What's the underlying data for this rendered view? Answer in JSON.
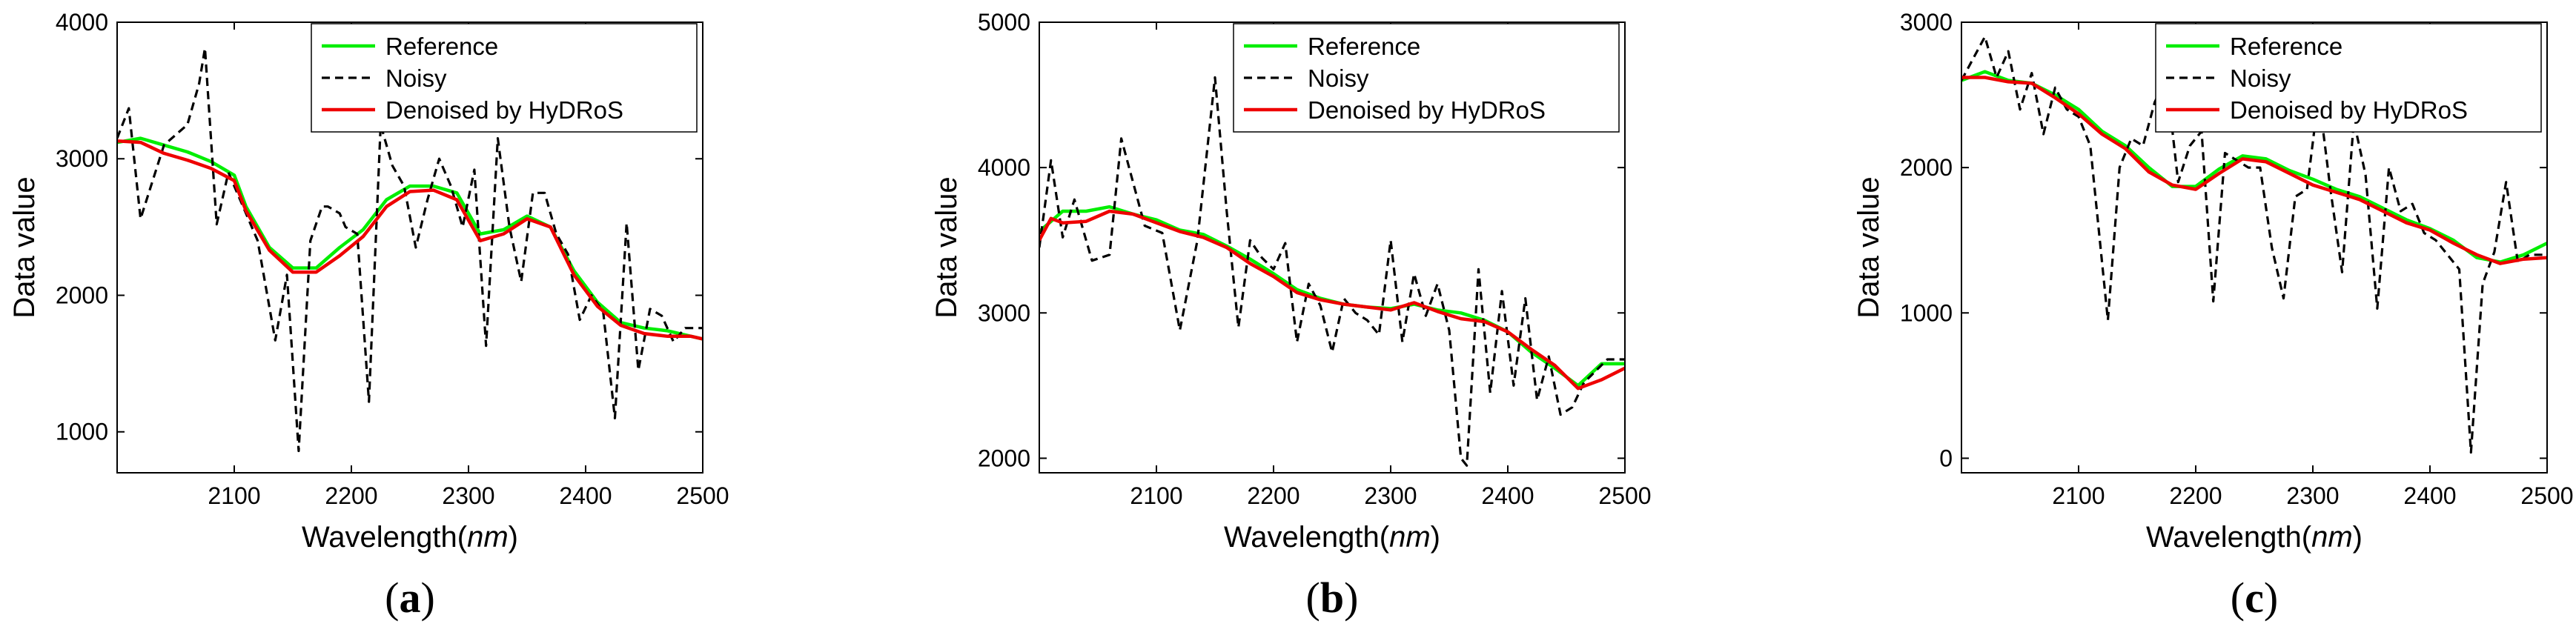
{
  "chart_data": [
    {
      "id": "a",
      "caption_letter": "a",
      "type": "line",
      "xlabel_main": "Wavelength",
      "xlabel_unit": "nm",
      "ylabel": "Data value",
      "xlim": [
        2000,
        2500
      ],
      "ylim": [
        700,
        4000
      ],
      "xticks": [
        2100,
        2200,
        2300,
        2400,
        2500
      ],
      "yticks": [
        1000,
        2000,
        3000,
        4000
      ],
      "legend_position": "top-right",
      "series": [
        {
          "name": "Reference",
          "color": "#00ee00",
          "dash": "solid",
          "x": [
            2000,
            2020,
            2040,
            2060,
            2080,
            2100,
            2110,
            2130,
            2150,
            2170,
            2190,
            2210,
            2230,
            2250,
            2270,
            2290,
            2310,
            2330,
            2350,
            2370,
            2390,
            2410,
            2430,
            2450,
            2470,
            2490,
            2500
          ],
          "y": [
            3120,
            3150,
            3100,
            3050,
            2980,
            2880,
            2650,
            2350,
            2200,
            2200,
            2350,
            2480,
            2700,
            2800,
            2800,
            2750,
            2450,
            2480,
            2580,
            2500,
            2180,
            1950,
            1800,
            1760,
            1740,
            1700,
            1680
          ]
        },
        {
          "name": "Noisy",
          "color": "#000000",
          "dash": "dashed",
          "x": [
            2000,
            2010,
            2020,
            2040,
            2060,
            2070,
            2075,
            2085,
            2095,
            2105,
            2120,
            2135,
            2145,
            2155,
            2165,
            2175,
            2180,
            2190,
            2195,
            2205,
            2215,
            2225,
            2235,
            2245,
            2255,
            2265,
            2275,
            2285,
            2295,
            2305,
            2315,
            2325,
            2335,
            2345,
            2355,
            2365,
            2375,
            2385,
            2395,
            2405,
            2415,
            2425,
            2435,
            2445,
            2455,
            2465,
            2475,
            2485,
            2500
          ],
          "y": [
            3150,
            3370,
            2560,
            3100,
            3250,
            3550,
            3810,
            2520,
            2900,
            2700,
            2400,
            1670,
            2150,
            860,
            2400,
            2650,
            2650,
            2600,
            2500,
            2450,
            1220,
            3250,
            2950,
            2800,
            2350,
            2700,
            3000,
            2800,
            2500,
            2920,
            1630,
            3150,
            2500,
            2100,
            2750,
            2750,
            2450,
            2300,
            1820,
            2000,
            1880,
            1100,
            2530,
            1450,
            1900,
            1850,
            1660,
            1760,
            1760
          ]
        },
        {
          "name": "Denoised by HyDRoS",
          "color": "#ee0000",
          "dash": "solid",
          "x": [
            2000,
            2020,
            2040,
            2060,
            2080,
            2100,
            2110,
            2130,
            2150,
            2170,
            2190,
            2210,
            2230,
            2250,
            2270,
            2290,
            2310,
            2330,
            2350,
            2370,
            2390,
            2410,
            2430,
            2450,
            2470,
            2490,
            2500
          ],
          "y": [
            3130,
            3120,
            3040,
            2990,
            2930,
            2840,
            2620,
            2330,
            2170,
            2170,
            2290,
            2430,
            2650,
            2760,
            2770,
            2700,
            2400,
            2450,
            2560,
            2500,
            2150,
            1920,
            1780,
            1720,
            1700,
            1700,
            1680
          ]
        }
      ]
    },
    {
      "id": "b",
      "caption_letter": "b",
      "type": "line",
      "xlabel_main": "Wavelength",
      "xlabel_unit": "nm",
      "ylabel": "Data value",
      "xlim": [
        2000,
        2500
      ],
      "ylim": [
        1900,
        5000
      ],
      "xticks": [
        2100,
        2200,
        2300,
        2400,
        2500
      ],
      "yticks": [
        2000,
        3000,
        4000,
        5000
      ],
      "legend_position": "top-right",
      "series": [
        {
          "name": "Reference",
          "color": "#00ee00",
          "dash": "solid",
          "x": [
            2000,
            2020,
            2040,
            2060,
            2080,
            2100,
            2120,
            2140,
            2160,
            2180,
            2200,
            2220,
            2240,
            2260,
            2280,
            2300,
            2320,
            2340,
            2360,
            2380,
            2400,
            2420,
            2440,
            2460,
            2480,
            2500
          ],
          "y": [
            3560,
            3700,
            3700,
            3730,
            3680,
            3640,
            3570,
            3540,
            3460,
            3370,
            3270,
            3160,
            3100,
            3060,
            3040,
            3030,
            3060,
            3020,
            3000,
            2950,
            2870,
            2730,
            2620,
            2500,
            2650,
            2650
          ]
        },
        {
          "name": "Noisy",
          "color": "#000000",
          "dash": "dashed",
          "x": [
            2000,
            2010,
            2020,
            2030,
            2045,
            2060,
            2070,
            2080,
            2090,
            2105,
            2120,
            2135,
            2150,
            2160,
            2170,
            2180,
            2190,
            2200,
            2210,
            2220,
            2230,
            2240,
            2250,
            2260,
            2270,
            2280,
            2290,
            2300,
            2310,
            2320,
            2330,
            2340,
            2350,
            2360,
            2365,
            2375,
            2385,
            2395,
            2405,
            2415,
            2425,
            2435,
            2445,
            2455,
            2465,
            2475,
            2485,
            2500
          ],
          "y": [
            3450,
            4050,
            3520,
            3780,
            3360,
            3400,
            4200,
            3900,
            3600,
            3550,
            2880,
            3500,
            4620,
            3700,
            2900,
            3500,
            3380,
            3300,
            3480,
            2800,
            3200,
            3050,
            2730,
            3100,
            3000,
            2950,
            2850,
            3500,
            2800,
            3270,
            2980,
            3200,
            2880,
            2000,
            1950,
            3300,
            2450,
            3150,
            2500,
            3100,
            2400,
            2700,
            2300,
            2350,
            2520,
            2600,
            2680,
            2680
          ]
        },
        {
          "name": "Denoised by HyDRoS",
          "color": "#ee0000",
          "dash": "solid",
          "x": [
            2000,
            2010,
            2020,
            2040,
            2060,
            2080,
            2100,
            2120,
            2140,
            2160,
            2180,
            2200,
            2220,
            2240,
            2260,
            2280,
            2300,
            2320,
            2340,
            2360,
            2380,
            2400,
            2420,
            2440,
            2460,
            2480,
            2500
          ],
          "y": [
            3500,
            3650,
            3620,
            3630,
            3700,
            3680,
            3620,
            3560,
            3520,
            3450,
            3340,
            3250,
            3140,
            3090,
            3060,
            3040,
            3020,
            3070,
            3010,
            2960,
            2940,
            2870,
            2750,
            2640,
            2480,
            2540,
            2620
          ]
        }
      ]
    },
    {
      "id": "c",
      "caption_letter": "c",
      "type": "line",
      "xlabel_main": "Wavelength",
      "xlabel_unit": "nm",
      "ylabel": "Data value",
      "xlim": [
        2000,
        2500
      ],
      "ylim": [
        -100,
        3000
      ],
      "xticks": [
        2100,
        2200,
        2300,
        2400,
        2500
      ],
      "yticks": [
        0,
        1000,
        2000,
        3000
      ],
      "legend_position": "top-right",
      "series": [
        {
          "name": "Reference",
          "color": "#00ee00",
          "dash": "solid",
          "x": [
            2000,
            2020,
            2040,
            2060,
            2080,
            2100,
            2120,
            2140,
            2160,
            2180,
            2200,
            2220,
            2240,
            2260,
            2280,
            2300,
            2320,
            2340,
            2360,
            2380,
            2400,
            2420,
            2440,
            2460,
            2480,
            2500
          ],
          "y": [
            2600,
            2660,
            2600,
            2580,
            2500,
            2400,
            2250,
            2150,
            2000,
            1870,
            1870,
            1990,
            2080,
            2060,
            1980,
            1920,
            1850,
            1800,
            1720,
            1640,
            1580,
            1500,
            1380,
            1350,
            1400,
            1480
          ]
        },
        {
          "name": "Noisy",
          "color": "#000000",
          "dash": "dashed",
          "x": [
            2000,
            2010,
            2020,
            2030,
            2040,
            2050,
            2060,
            2070,
            2080,
            2090,
            2100,
            2110,
            2125,
            2135,
            2145,
            2155,
            2165,
            2175,
            2185,
            2195,
            2205,
            2215,
            2225,
            2235,
            2245,
            2255,
            2265,
            2275,
            2285,
            2295,
            2305,
            2315,
            2325,
            2335,
            2345,
            2355,
            2365,
            2375,
            2385,
            2395,
            2405,
            2415,
            2425,
            2435,
            2445,
            2455,
            2465,
            2475,
            2485,
            2500
          ],
          "y": [
            2600,
            2750,
            2900,
            2620,
            2800,
            2400,
            2650,
            2230,
            2550,
            2400,
            2350,
            2150,
            950,
            2000,
            2200,
            2150,
            2450,
            2620,
            1900,
            2150,
            2250,
            1080,
            2100,
            2050,
            2000,
            2000,
            1450,
            1100,
            1800,
            1850,
            2500,
            1850,
            1280,
            2320,
            1950,
            1030,
            2000,
            1700,
            1750,
            1550,
            1500,
            1400,
            1300,
            40,
            1200,
            1420,
            1900,
            1350,
            1400,
            1400
          ]
        },
        {
          "name": "Denoised by HyDRoS",
          "color": "#ee0000",
          "dash": "solid",
          "x": [
            2000,
            2020,
            2040,
            2060,
            2080,
            2100,
            2120,
            2140,
            2160,
            2180,
            2200,
            2220,
            2240,
            2260,
            2280,
            2300,
            2320,
            2340,
            2360,
            2380,
            2400,
            2420,
            2440,
            2460,
            2480,
            2500
          ],
          "y": [
            2620,
            2620,
            2590,
            2580,
            2480,
            2370,
            2230,
            2130,
            1970,
            1880,
            1850,
            1960,
            2060,
            2040,
            1960,
            1880,
            1830,
            1780,
            1700,
            1620,
            1570,
            1480,
            1400,
            1340,
            1370,
            1380
          ]
        }
      ]
    }
  ]
}
